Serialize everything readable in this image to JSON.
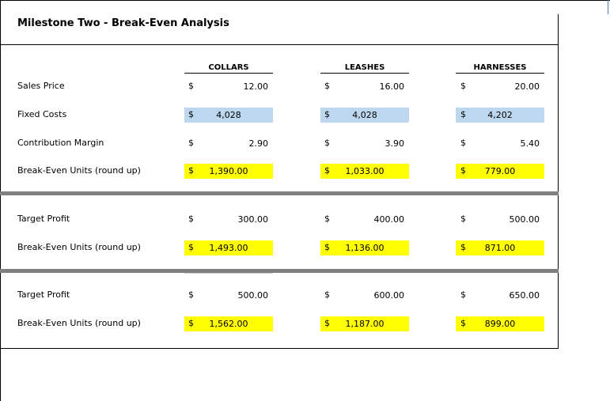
{
  "title": "Milestone Two - Break-Even Analysis",
  "columns": [
    "COLLARS",
    "LEASHES",
    "HARNESSES"
  ],
  "currency": "$",
  "section1": {
    "rows": [
      {
        "label": "Sales Price",
        "values": [
          "12.00",
          "16.00",
          "20.00"
        ],
        "highlight": "none"
      },
      {
        "label": "Fixed Costs",
        "values": [
          "4,028",
          "4,028",
          "4,202"
        ],
        "highlight": "blue"
      },
      {
        "label": "Contribution Margin",
        "values": [
          "2.90",
          "3.90",
          "5.40"
        ],
        "highlight": "none"
      },
      {
        "label": "Break-Even Units (round up)",
        "values": [
          "1,390.00",
          "1,033.00",
          "779.00"
        ],
        "highlight": "yellow"
      }
    ]
  },
  "section2": {
    "rows": [
      {
        "label": "Target Profit",
        "values": [
          "300.00",
          "400.00",
          "500.00"
        ],
        "highlight": "none"
      },
      {
        "label": "Break-Even Units (round up)",
        "values": [
          "1,493.00",
          "1,136.00",
          "871.00"
        ],
        "highlight": "yellow"
      }
    ]
  },
  "section3": {
    "rows": [
      {
        "label": "Target Profit",
        "values": [
          "500.00",
          "600.00",
          "650.00"
        ],
        "highlight": "none"
      },
      {
        "label": "Break-Even Units (round up)",
        "values": [
          "1,562.00",
          "1,187.00",
          "899.00"
        ],
        "highlight": "yellow"
      }
    ]
  },
  "colors": {
    "highlight_yellow": "#ffff00",
    "highlight_blue": "#bdd7ee",
    "separator": "#808080"
  }
}
